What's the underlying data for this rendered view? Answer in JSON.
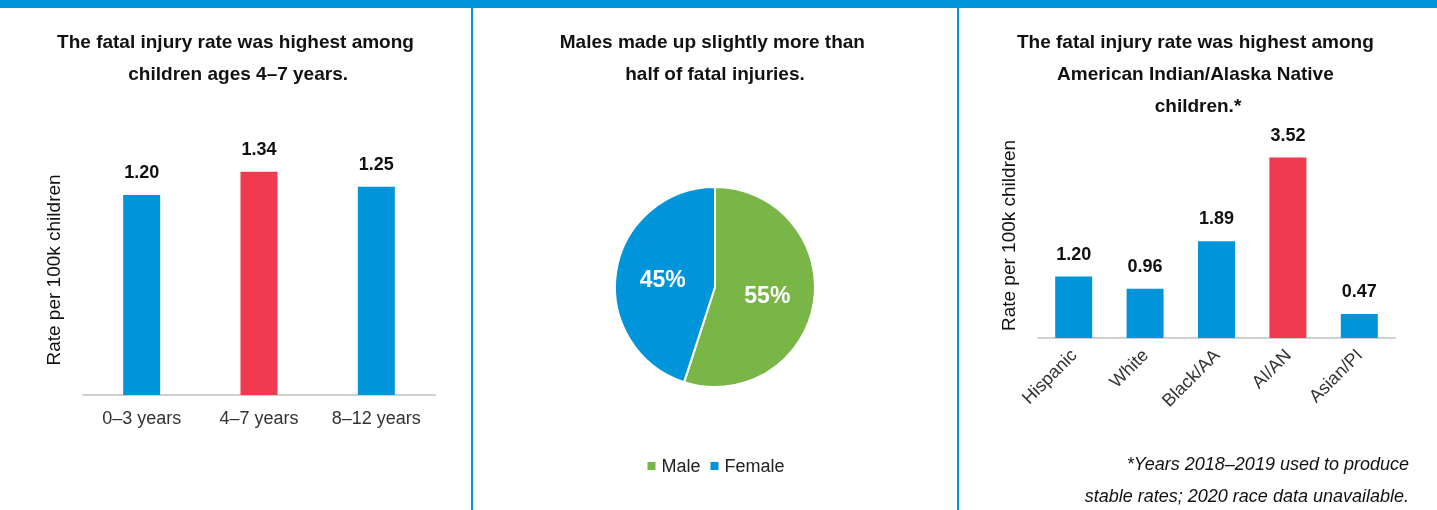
{
  "chart_data": [
    {
      "type": "bar",
      "title": "The fatal injury rate was highest among children ages 4–7 years.",
      "ylabel": "Rate per 100k children",
      "categories": [
        "0–3 years",
        "4–7 years",
        "8–12 years"
      ],
      "values": [
        1.2,
        1.34,
        1.25
      ],
      "colors": [
        "#0095da",
        "#ef3a4f",
        "#0095da"
      ],
      "value_labels": [
        "1.20",
        "1.34",
        "1.25"
      ],
      "grid": false,
      "legend": false
    },
    {
      "type": "pie",
      "title": "Males made up slightly more than half of fatal injuries.",
      "categories": [
        "Male",
        "Female"
      ],
      "values": [
        55,
        45
      ],
      "colors": [
        "#7ab547",
        "#0095da"
      ],
      "value_labels": [
        "55%",
        "45%"
      ],
      "legend": "bottom"
    },
    {
      "type": "bar",
      "title": "The fatal injury rate was highest among American Indian/Alaska Native children.*",
      "ylabel": "Rate per 100k children",
      "categories": [
        "Hispanic",
        "White",
        "Black/AA",
        "AI/AN",
        "Asian/PI"
      ],
      "values": [
        1.2,
        0.96,
        1.89,
        3.52,
        0.47
      ],
      "colors": [
        "#0095da",
        "#0095da",
        "#0095da",
        "#ef3a4f",
        "#0095da"
      ],
      "value_labels": [
        "1.20",
        "0.96",
        "1.89",
        "3.52",
        "0.47"
      ],
      "grid": false,
      "legend": false,
      "annotations": [
        "*Years 2018–2019 used to produce stable rates; 2020 race data unavailable."
      ]
    }
  ]
}
